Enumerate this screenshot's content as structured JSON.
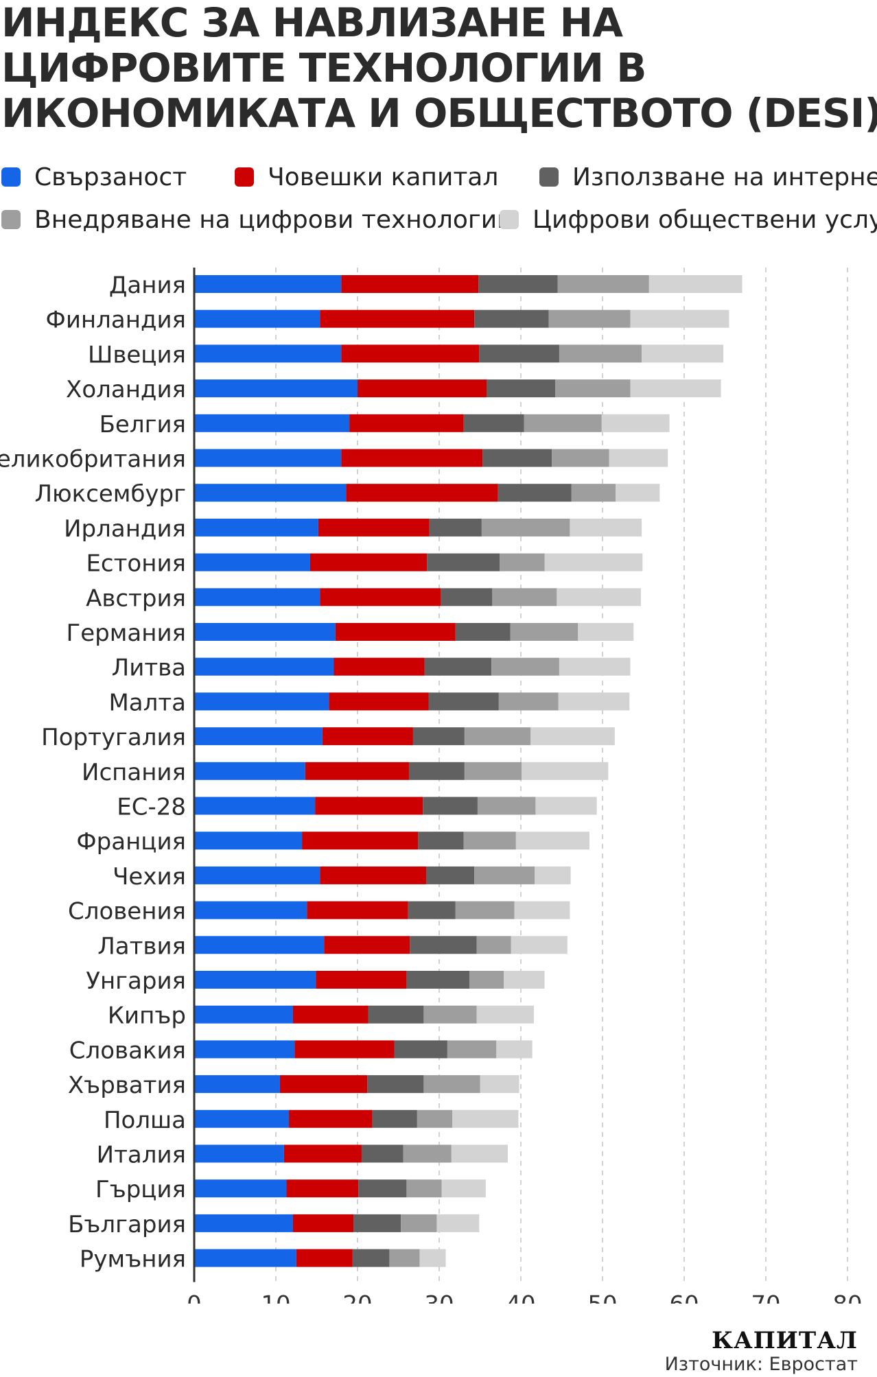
{
  "title_lines": [
    "ИНДЕКС ЗА НАВЛИЗАНЕ НА",
    "ЦИФРОВИТЕ ТЕХНОЛОГИИ В",
    "ИКОНОМИКАТА И ОБЩЕСТВОТО (DESI)"
  ],
  "branding": {
    "logo": "КАПИТАЛ",
    "source": "Източник: Евростат"
  },
  "chart_data": {
    "type": "bar",
    "orientation": "horizontal",
    "stacked": true,
    "title": "ИНДЕКС ЗА НАВЛИЗАНЕ НА ЦИФРОВИТЕ ТЕХНОЛОГИИ В ИКОНОМИКАТА И ОБЩЕСТВОТО (DESI)",
    "xlabel": "",
    "ylabel": "",
    "xlim": [
      0,
      80
    ],
    "xticks": [
      "0",
      "10",
      "20",
      "30",
      "40",
      "50",
      "60",
      "70",
      "80"
    ],
    "grid": "vertical dashed",
    "legend_position": "top",
    "categories": [
      "Дания",
      "Финландия",
      "Швеция",
      "Холандия",
      "Белгия",
      "Великобритания",
      "Люксембург",
      "Ирландия",
      "Естония",
      "Австрия",
      "Германия",
      "Литва",
      "Малта",
      "Португалия",
      "Испания",
      "ЕС-28",
      "Франция",
      "Чехия",
      "Словения",
      "Латвия",
      "Унгария",
      "Кипър",
      "Словакия",
      "Хърватия",
      "Полша",
      "Италия",
      "Гърция",
      "България",
      "Румъния"
    ],
    "series": [
      {
        "name": "Свързаност",
        "color": "#1565e8",
        "values": [
          18.0,
          15.4,
          18.0,
          20.0,
          19.0,
          18.0,
          18.6,
          15.2,
          14.2,
          15.4,
          17.3,
          17.1,
          16.5,
          15.7,
          13.6,
          14.8,
          13.2,
          15.4,
          13.8,
          15.9,
          14.9,
          12.1,
          12.3,
          10.5,
          11.6,
          11.0,
          11.3,
          12.1,
          12.5
        ]
      },
      {
        "name": "Човешки капитал",
        "color": "#cc0000",
        "values": [
          16.8,
          18.9,
          16.9,
          15.8,
          14.0,
          17.3,
          18.6,
          13.6,
          14.3,
          14.8,
          14.7,
          11.1,
          12.2,
          11.1,
          12.7,
          13.2,
          14.2,
          13.0,
          12.4,
          10.5,
          11.1,
          9.2,
          12.2,
          10.7,
          10.2,
          9.5,
          8.8,
          7.4,
          6.9
        ]
      },
      {
        "name": "Използване на интернет",
        "color": "#616161",
        "values": [
          9.7,
          9.1,
          9.8,
          8.4,
          7.4,
          8.5,
          9.0,
          6.4,
          8.9,
          6.3,
          6.7,
          8.2,
          8.6,
          6.3,
          6.8,
          6.7,
          5.6,
          5.9,
          5.8,
          8.2,
          7.7,
          6.8,
          6.5,
          6.9,
          5.5,
          5.1,
          5.9,
          5.8,
          4.5
        ]
      },
      {
        "name": "Внедряване на цифрови технологии",
        "color": "#9e9e9e",
        "values": [
          11.2,
          10.0,
          10.1,
          9.2,
          9.5,
          7.0,
          5.4,
          10.8,
          5.5,
          7.9,
          8.3,
          8.3,
          7.3,
          8.1,
          7.0,
          7.1,
          6.4,
          7.4,
          7.2,
          4.2,
          4.2,
          6.5,
          6.0,
          6.9,
          4.3,
          5.9,
          4.3,
          4.4,
          3.7
        ]
      },
      {
        "name": "Цифрови обществени услуги",
        "color": "#d3d3d3",
        "values": [
          11.4,
          12.1,
          10.0,
          11.1,
          8.3,
          7.2,
          5.4,
          8.8,
          12.0,
          10.3,
          6.8,
          8.7,
          8.7,
          10.3,
          10.6,
          7.5,
          9.0,
          4.4,
          6.8,
          6.9,
          5.0,
          7.0,
          4.4,
          4.8,
          8.1,
          6.9,
          5.4,
          5.2,
          3.2
        ]
      }
    ]
  }
}
